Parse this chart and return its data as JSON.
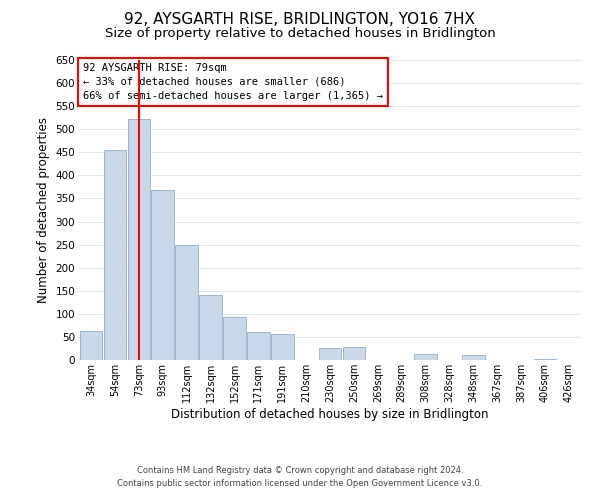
{
  "title": "92, AYSGARTH RISE, BRIDLINGTON, YO16 7HX",
  "subtitle": "Size of property relative to detached houses in Bridlington",
  "xlabel": "Distribution of detached houses by size in Bridlington",
  "ylabel": "Number of detached properties",
  "bin_labels": [
    "34sqm",
    "54sqm",
    "73sqm",
    "93sqm",
    "112sqm",
    "132sqm",
    "152sqm",
    "171sqm",
    "191sqm",
    "210sqm",
    "230sqm",
    "250sqm",
    "269sqm",
    "289sqm",
    "308sqm",
    "328sqm",
    "348sqm",
    "367sqm",
    "387sqm",
    "406sqm",
    "426sqm"
  ],
  "bar_values": [
    62,
    456,
    522,
    369,
    250,
    141,
    93,
    61,
    57,
    0,
    27,
    28,
    0,
    0,
    12,
    0,
    10,
    0,
    0,
    3,
    0
  ],
  "bar_color": "#c8d8e8",
  "bar_edgecolor": "#a0b8cc",
  "ylim": [
    0,
    650
  ],
  "yticks": [
    0,
    50,
    100,
    150,
    200,
    250,
    300,
    350,
    400,
    450,
    500,
    550,
    600,
    650
  ],
  "property_line_bin_index": 2,
  "annotation_title": "92 AYSGARTH RISE: 79sqm",
  "annotation_line1": "← 33% of detached houses are smaller (686)",
  "annotation_line2": "66% of semi-detached houses are larger (1,365) →",
  "footer_line1": "Contains HM Land Registry data © Crown copyright and database right 2024.",
  "footer_line2": "Contains public sector information licensed under the Open Government Licence v3.0.",
  "title_fontsize": 11,
  "subtitle_fontsize": 9.5,
  "background_color": "#ffffff",
  "grid_color": "#dce8f0"
}
